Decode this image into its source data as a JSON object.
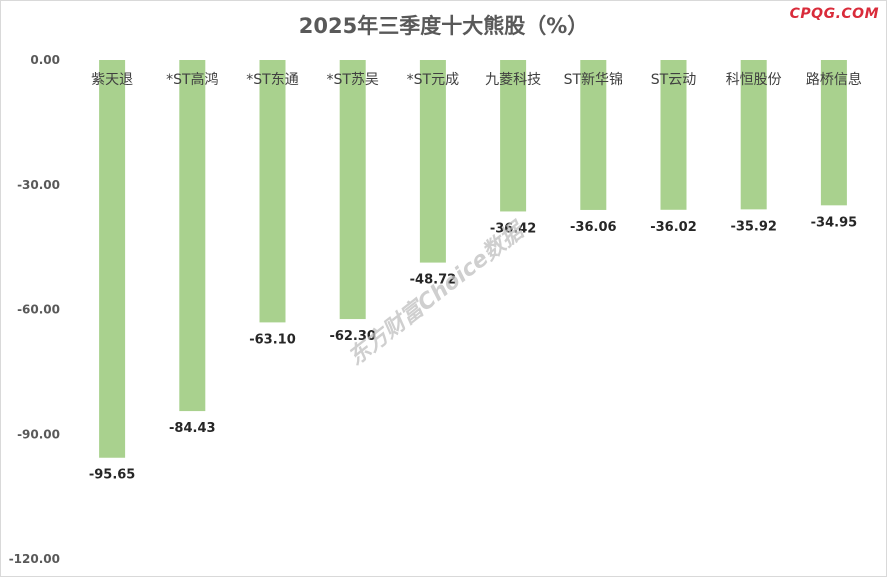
{
  "brand": "CPQG.COM",
  "watermark": "东方财富Choice数据",
  "chart_data": {
    "type": "bar",
    "title": "2025年三季度十大熊股（%）",
    "categories": [
      "紫天退",
      "*ST高鸿",
      "*ST东通",
      "*ST苏吴",
      "*ST元成",
      "九菱科技",
      "ST新华锦",
      "ST云动",
      "科恒股份",
      "路桥信息"
    ],
    "values": [
      -95.65,
      -84.43,
      -63.1,
      -62.3,
      -48.72,
      -36.42,
      -36.06,
      -36.02,
      -35.92,
      -34.95
    ],
    "value_labels": [
      "-95.65",
      "-84.43",
      "-63.10",
      "-62.30",
      "-48.72",
      "-36.42",
      "-36.06",
      "-36.02",
      "-35.92",
      "-34.95"
    ],
    "yticks": [
      "0.00",
      "-30.00",
      "-60.00",
      "-90.00",
      "-120.00"
    ],
    "ylim": [
      -120,
      0
    ],
    "grid": false,
    "bar_color": "#a9d18e",
    "xlabel": "",
    "ylabel": ""
  }
}
